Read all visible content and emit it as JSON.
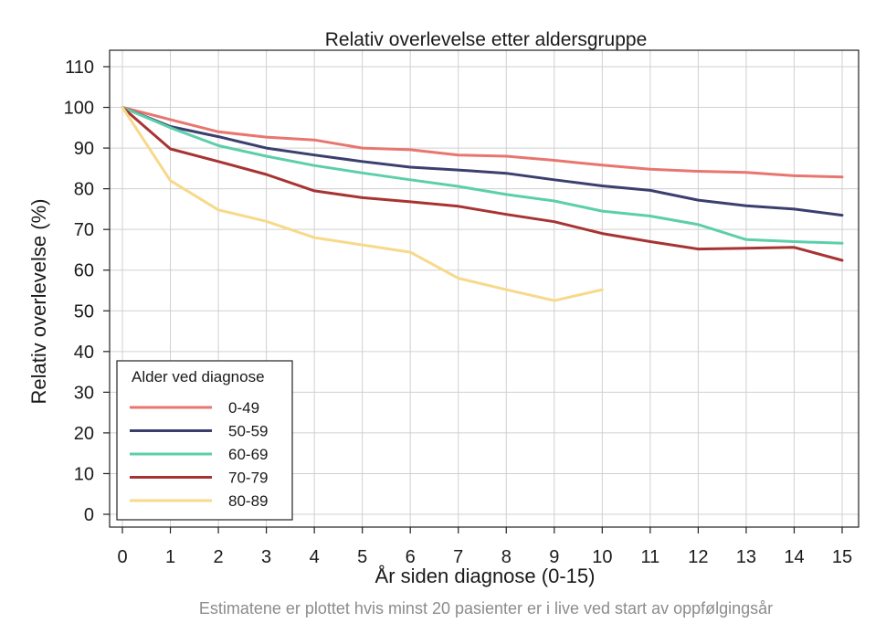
{
  "chart_data": {
    "type": "line",
    "title": "Relativ overlevelse etter aldersgruppe",
    "xlabel": "År siden diagnose (0-15)",
    "ylabel": "Relativ overlevelse (%)",
    "caption": "Estimatene er plottet hvis minst 20 pasienter er i live ved start av oppfølgingsår",
    "xlim": [
      0,
      15
    ],
    "ylim": [
      0,
      110
    ],
    "x_ticks": [
      0,
      1,
      2,
      3,
      4,
      5,
      6,
      7,
      8,
      9,
      10,
      11,
      12,
      13,
      14,
      15
    ],
    "y_ticks": [
      0,
      10,
      20,
      30,
      40,
      50,
      60,
      70,
      80,
      90,
      100,
      110
    ],
    "grid": true,
    "legend": {
      "title": "Alder ved diagnose",
      "position": "bottom-left"
    },
    "series": [
      {
        "name": "0-49",
        "color": "#e8766f",
        "x": [
          0,
          1,
          2,
          3,
          4,
          5,
          6,
          7,
          8,
          9,
          10,
          11,
          12,
          13,
          14,
          15
        ],
        "values": [
          100,
          97,
          94,
          92.7,
          92,
          90,
          89.6,
          88.3,
          88,
          87,
          85.8,
          84.8,
          84.3,
          84,
          83.2,
          82.9
        ]
      },
      {
        "name": "50-59",
        "color": "#3b3f6e",
        "x": [
          0,
          1,
          2,
          3,
          4,
          5,
          6,
          7,
          8,
          9,
          10,
          11,
          12,
          13,
          14,
          15
        ],
        "values": [
          100,
          95.3,
          92.8,
          90,
          88.3,
          86.7,
          85.3,
          84.6,
          83.8,
          82.2,
          80.7,
          79.6,
          77.2,
          75.8,
          75,
          73.5
        ]
      },
      {
        "name": "60-69",
        "color": "#5ccfaa",
        "x": [
          0,
          1,
          2,
          3,
          4,
          5,
          6,
          7,
          8,
          9,
          10,
          11,
          12,
          13,
          14,
          15
        ],
        "values": [
          100,
          95,
          90.6,
          88,
          85.7,
          83.9,
          82.2,
          80.6,
          78.6,
          77,
          74.5,
          73.3,
          71.2,
          67.5,
          67,
          66.6
        ]
      },
      {
        "name": "70-79",
        "color": "#a83333",
        "x": [
          0,
          1,
          2,
          3,
          4,
          5,
          6,
          7,
          8,
          9,
          10,
          11,
          12,
          13,
          14,
          15
        ],
        "values": [
          100,
          89.8,
          86.7,
          83.5,
          79.5,
          77.8,
          76.8,
          75.7,
          73.7,
          71.9,
          69,
          67,
          65.2,
          65.4,
          65.6,
          62.4
        ]
      },
      {
        "name": "80-89",
        "color": "#f7d98a",
        "x": [
          0,
          1,
          2,
          3,
          4,
          5,
          6,
          7,
          8,
          9,
          10
        ],
        "values": [
          100,
          82,
          74.8,
          72,
          68,
          66.2,
          64.4,
          58,
          55.2,
          52.5,
          55.2
        ]
      }
    ]
  }
}
